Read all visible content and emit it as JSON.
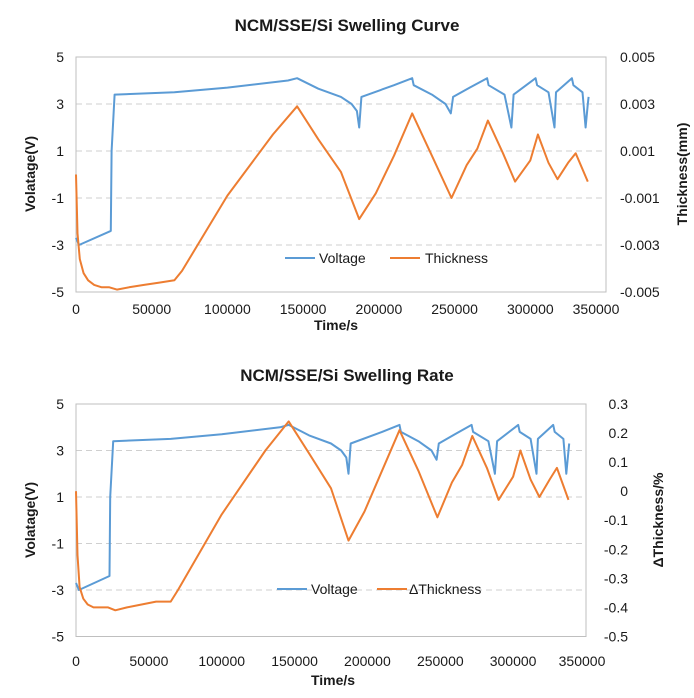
{
  "colors": {
    "voltage": "#5b9bd5",
    "thickness": "#ed7d31"
  },
  "chart_data": [
    {
      "type": "line",
      "title": "NCM/SSE/Si Swelling Curve",
      "xlabel": "Time/s",
      "ylabel": "Volatage(V)",
      "y2label": "Thickness(mm)",
      "xlim": [
        0,
        350000
      ],
      "ylim": [
        -5,
        5
      ],
      "y2lim": [
        -0.005,
        0.005
      ],
      "xticks": [
        "0",
        "50000",
        "100000",
        "150000",
        "200000",
        "250000",
        "300000",
        "350000"
      ],
      "yticks": [
        "5",
        "3",
        "1",
        "-1",
        "-3",
        "-5"
      ],
      "y2ticks": [
        "0.005",
        "0.003",
        "0.001",
        "-0.001",
        "-0.003",
        "-0.005"
      ],
      "grid": true,
      "legend_position": "bottom-center",
      "series": [
        {
          "name": "Voltage",
          "axis": "left",
          "x": [
            0,
            2000,
            23000,
            23500,
            25500,
            65000,
            100000,
            140000,
            146000,
            160000,
            175000,
            182000,
            185500,
            187000,
            188500,
            210000,
            222000,
            223000,
            235000,
            244000,
            247500,
            249000,
            260000,
            271500,
            272500,
            283000,
            287500,
            289000,
            303500,
            304500,
            312000,
            316000,
            317000,
            327500,
            328500,
            334500,
            336500,
            338000,
            338500
          ],
          "y": [
            -2.7,
            -3.0,
            -2.4,
            1.0,
            3.4,
            3.5,
            3.7,
            4.0,
            4.1,
            3.65,
            3.3,
            3.0,
            2.7,
            2.0,
            3.3,
            3.8,
            4.1,
            3.8,
            3.4,
            3.0,
            2.6,
            3.3,
            3.7,
            4.1,
            3.8,
            3.4,
            2.0,
            3.4,
            4.1,
            3.8,
            3.5,
            2.0,
            3.5,
            4.1,
            3.8,
            3.5,
            2.0,
            3.0,
            3.3
          ],
          "color": "#5b9bd5"
        },
        {
          "name": "Thickness",
          "axis": "right",
          "x": [
            0,
            1000,
            2500,
            5000,
            8000,
            12000,
            17000,
            22000,
            27000,
            35000,
            45000,
            55000,
            65000,
            70000,
            100000,
            130000,
            146000,
            160000,
            175000,
            187000,
            198000,
            210000,
            222000,
            235000,
            248000,
            258000,
            265000,
            272000,
            282000,
            290000,
            300000,
            305000,
            312000,
            318000,
            325000,
            330000,
            338000
          ],
          "y": [
            0.0,
            -0.0025,
            -0.0036,
            -0.0042,
            -0.0045,
            -0.0047,
            -0.0048,
            -0.0048,
            -0.0049,
            -0.0048,
            -0.0047,
            -0.0046,
            -0.0045,
            -0.0041,
            -0.0009,
            0.0017,
            0.0029,
            0.0015,
            0.0001,
            -0.0019,
            -0.0008,
            0.0008,
            0.0026,
            0.0008,
            -0.001,
            0.0004,
            0.0011,
            0.0023,
            0.0009,
            -0.0003,
            0.0006,
            0.0017,
            0.0005,
            -0.0002,
            0.0005,
            0.0009,
            -0.0003
          ],
          "color": "#ed7d31"
        }
      ]
    },
    {
      "type": "line",
      "title": "NCM/SSE/Si Swelling Rate",
      "xlabel": "Time/s",
      "ylabel": "Volatage(V)",
      "y2label": "ΔThickness/%",
      "xlim": [
        0,
        350000
      ],
      "ylim": [
        -5,
        5
      ],
      "y2lim": [
        -0.5,
        0.3
      ],
      "xticks": [
        "0",
        "50000",
        "100000",
        "150000",
        "200000",
        "250000",
        "300000",
        "350000"
      ],
      "yticks": [
        "5",
        "3",
        "1",
        "-1",
        "-3",
        "-5"
      ],
      "y2ticks": [
        "0.3",
        "0.2",
        "0.1",
        "0",
        "-0.1",
        "-0.2",
        "-0.3",
        "-0.4",
        "-0.5"
      ],
      "grid": true,
      "legend_position": "bottom-center",
      "series": [
        {
          "name": "Voltage",
          "axis": "left",
          "x": [
            0,
            2000,
            23000,
            23500,
            25500,
            65000,
            100000,
            140000,
            146000,
            160000,
            175000,
            182000,
            185500,
            187000,
            188500,
            210000,
            222000,
            223000,
            235000,
            244000,
            247500,
            249000,
            260000,
            271500,
            272500,
            283000,
            287500,
            289000,
            303500,
            304500,
            312000,
            316000,
            317000,
            327500,
            328500,
            334500,
            336500,
            338000,
            338500
          ],
          "y": [
            -2.7,
            -3.0,
            -2.4,
            1.0,
            3.4,
            3.5,
            3.7,
            4.0,
            4.1,
            3.65,
            3.3,
            3.0,
            2.7,
            2.0,
            3.3,
            3.8,
            4.1,
            3.8,
            3.4,
            3.0,
            2.6,
            3.3,
            3.7,
            4.1,
            3.8,
            3.4,
            2.0,
            3.4,
            4.1,
            3.8,
            3.5,
            2.0,
            3.5,
            4.1,
            3.8,
            3.5,
            2.0,
            3.0,
            3.3
          ],
          "color": "#5b9bd5"
        },
        {
          "name": "ΔThickness",
          "axis": "right",
          "x": [
            0,
            1000,
            2500,
            5000,
            8000,
            12000,
            17000,
            22000,
            27000,
            35000,
            45000,
            55000,
            65000,
            70000,
            100000,
            130000,
            146000,
            160000,
            175000,
            187000,
            198000,
            210000,
            222000,
            235000,
            248000,
            258000,
            265000,
            272000,
            282000,
            290000,
            300000,
            305000,
            312000,
            318000,
            325000,
            330000,
            338000
          ],
          "y": [
            0.0,
            -0.22,
            -0.33,
            -0.37,
            -0.39,
            -0.4,
            -0.4,
            -0.4,
            -0.41,
            -0.4,
            -0.39,
            -0.38,
            -0.38,
            -0.34,
            -0.08,
            0.14,
            0.24,
            0.13,
            0.01,
            -0.17,
            -0.07,
            0.07,
            0.21,
            0.07,
            -0.09,
            0.03,
            0.09,
            0.19,
            0.08,
            -0.03,
            0.05,
            0.14,
            0.04,
            -0.02,
            0.04,
            0.08,
            -0.03
          ],
          "color": "#ed7d31"
        }
      ]
    }
  ]
}
